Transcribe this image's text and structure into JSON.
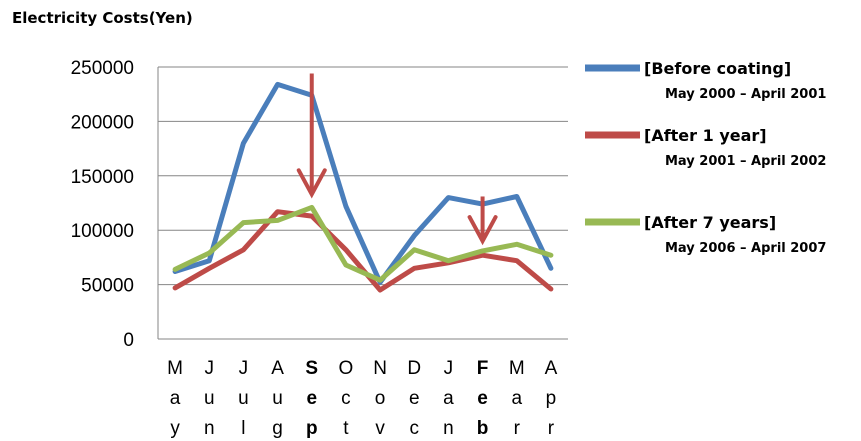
{
  "chart_data": {
    "type": "line",
    "title": "Electricity Costs(Yen)",
    "ylim": [
      0,
      250000
    ],
    "ytick_step": 50000,
    "yticks": [
      "0",
      "50000",
      "100000",
      "150000",
      "200000",
      "250000"
    ],
    "categories": [
      "May",
      "Jun",
      "Jul",
      "Aug",
      "Sep",
      "Oct",
      "Nov",
      "Dec",
      "Jan",
      "Feb",
      "Mar",
      "Apr"
    ],
    "bold_categories": [
      "Sep",
      "Feb"
    ],
    "grid": true,
    "legend_position": "right",
    "series": [
      {
        "name": "[Before coating]",
        "period": "May 2000 – April 2001",
        "color": "#4a7ebb",
        "values": [
          62000,
          72000,
          180000,
          234000,
          224000,
          122000,
          52000,
          95000,
          130000,
          124000,
          131000,
          65000
        ]
      },
      {
        "name": "[After 1 year]",
        "period": "May 2001 – April 2002",
        "color": "#be4b48",
        "values": [
          47000,
          65000,
          82000,
          117000,
          113000,
          82000,
          45000,
          65000,
          70000,
          77000,
          72000,
          46000
        ]
      },
      {
        "name": "[After 7 years]",
        "period": "May 2006 – April 2007",
        "color": "#98b954",
        "values": [
          64000,
          79000,
          107000,
          109000,
          121000,
          68000,
          54000,
          82000,
          72000,
          81000,
          87000,
          77000
        ]
      }
    ],
    "annotations": [
      {
        "type": "arrow",
        "category": "Sep",
        "from_value": 244000,
        "to_value": 133000,
        "color": "#be4b48"
      },
      {
        "type": "arrow",
        "category": "Feb",
        "from_value": 131000,
        "to_value": 90000,
        "color": "#be4b48"
      }
    ]
  }
}
